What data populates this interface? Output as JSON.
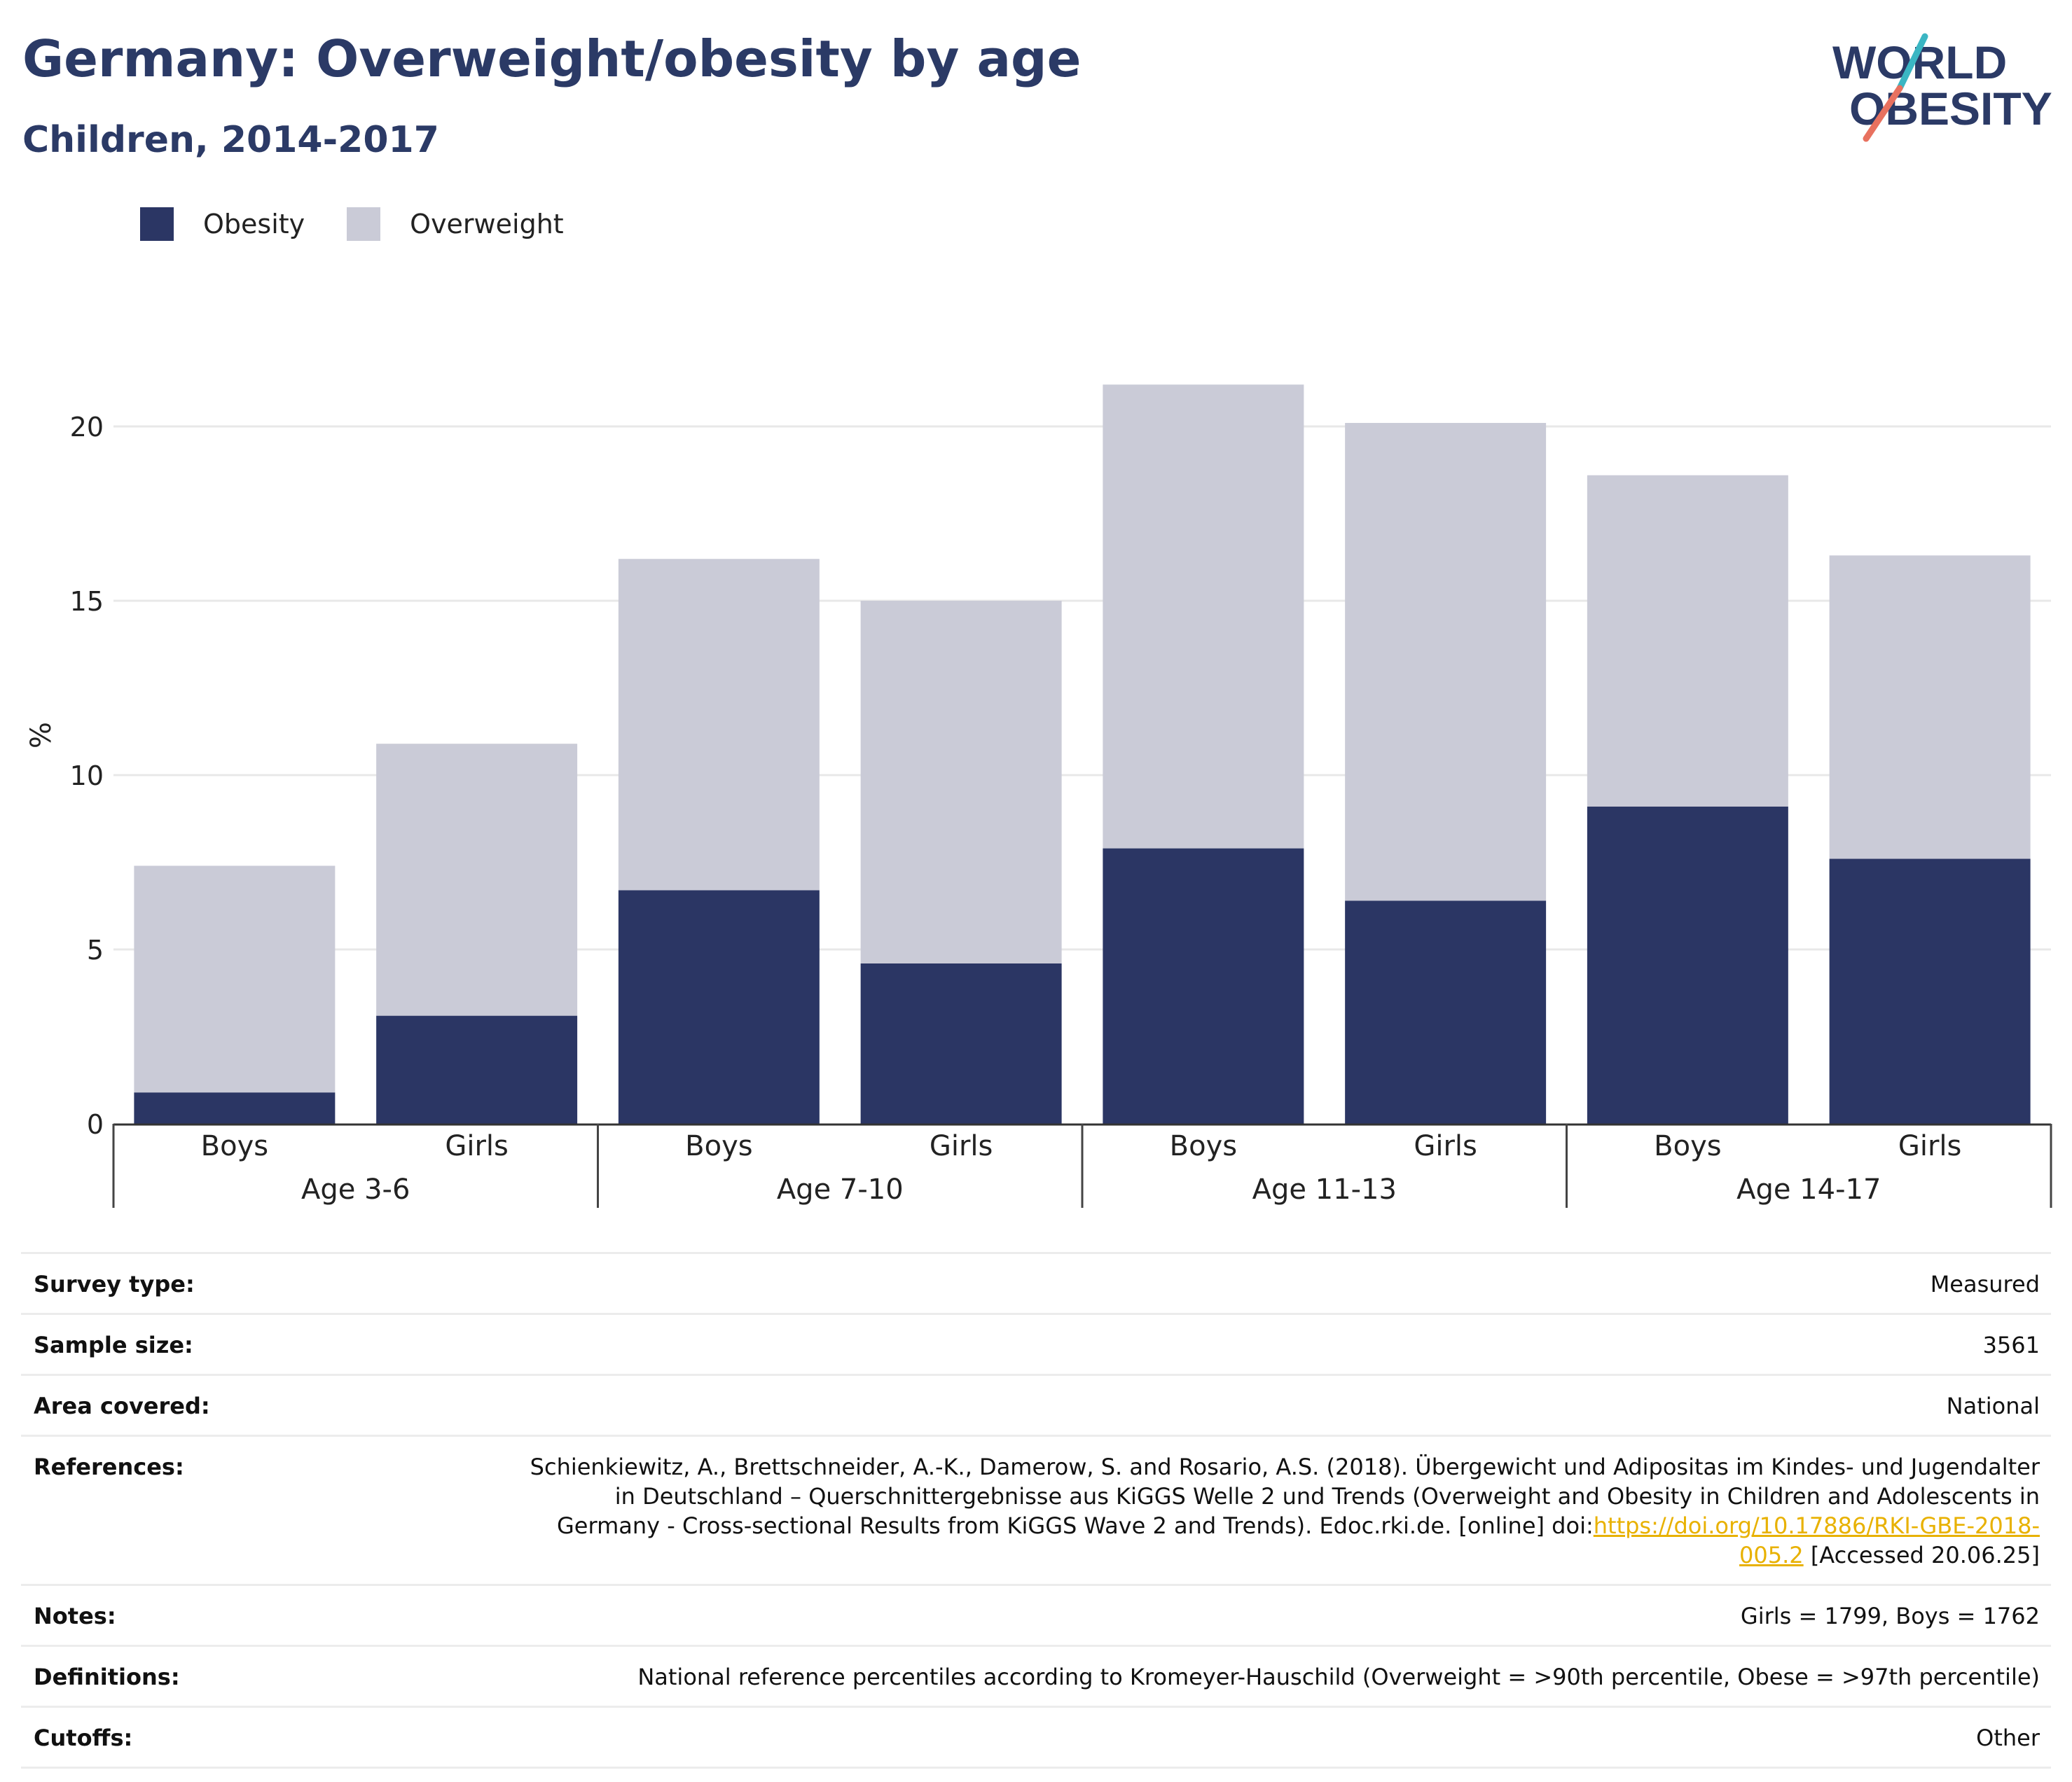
{
  "header": {
    "title": "Germany: Overweight/obesity by age",
    "subtitle": "Children, 2014-2017"
  },
  "logo": {
    "line1": "WORLD",
    "line2": "OBESITY"
  },
  "colors": {
    "obesity": "#2b3664",
    "overweight": "#cacbd7",
    "title": "#2b3a66",
    "link": "#e8b100"
  },
  "legend": [
    {
      "label": "Obesity",
      "color": "#2b3664"
    },
    {
      "label": "Overweight",
      "color": "#cacbd7"
    }
  ],
  "chart_data": {
    "type": "bar",
    "stacked": true,
    "ylabel": "%",
    "ylim": [
      0,
      22
    ],
    "yticks": [
      0,
      5,
      10,
      15,
      20
    ],
    "grid": true,
    "legend_position": "top-left",
    "groups": [
      "Age 3-6",
      "Age 7-10",
      "Age 11-13",
      "Age 14-17"
    ],
    "categories": [
      "Boys",
      "Girls",
      "Boys",
      "Girls",
      "Boys",
      "Girls",
      "Boys",
      "Girls"
    ],
    "series": [
      {
        "name": "Obesity",
        "values": [
          0.9,
          3.1,
          6.7,
          4.6,
          7.9,
          6.4,
          9.1,
          7.6
        ]
      },
      {
        "name": "Overweight",
        "values": [
          6.5,
          7.8,
          9.5,
          10.4,
          13.3,
          13.7,
          9.5,
          8.7
        ]
      }
    ]
  },
  "info": {
    "survey_type_label": "Survey type:",
    "survey_type": "Measured",
    "sample_size_label": "Sample size:",
    "sample_size": "3561",
    "area_label": "Area covered:",
    "area": "National",
    "references_label": "References:",
    "references_text": "Schienkiewitz, A., Brettschneider, A.-K., Damerow, S. and Rosario, A.S. (2018). Übergewicht und Adipositas im Kindes- und Jugendalter in Deutschland – Querschnittergebnisse aus KiGGS Welle 2 und Trends (Overweight and Obesity in Children and Adolescents in Germany - Cross-sectional Results from KiGGS Wave 2 and Trends). Edoc.rki.de. [online] doi:",
    "references_link": "https://doi.org/10.17886/RKI-GBE-2018-005.2",
    "references_suffix": " [Accessed 20.06.25]",
    "notes_label": "Notes:",
    "notes": "Girls = 1799, Boys = 1762",
    "definitions_label": "Definitions:",
    "definitions": "National reference percentiles according to Kromeyer-Hauschild (Overweight = >90th percentile, Obese = >97th percentile)",
    "cutoffs_label": "Cutoffs:",
    "cutoffs": "Other"
  }
}
